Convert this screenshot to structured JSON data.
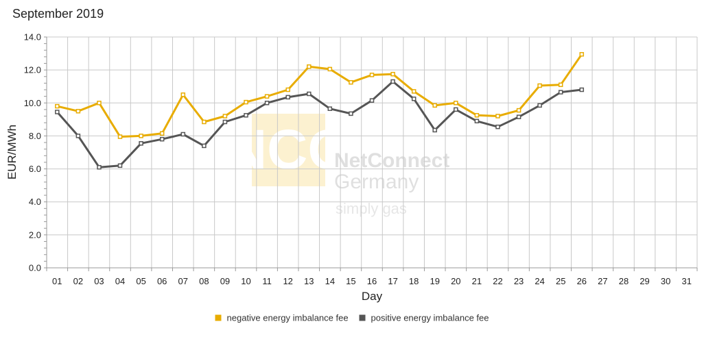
{
  "chart_data": {
    "type": "line",
    "title": "September 2019",
    "xlabel": "Day",
    "ylabel": "EUR/MWh",
    "ylim": [
      0,
      14
    ],
    "y_ticks": [
      "0.0",
      "2.0",
      "4.0",
      "6.0",
      "8.0",
      "10.0",
      "12.0",
      "14.0"
    ],
    "categories": [
      "01",
      "02",
      "03",
      "04",
      "05",
      "06",
      "07",
      "08",
      "09",
      "10",
      "11",
      "12",
      "13",
      "14",
      "15",
      "16",
      "17",
      "18",
      "19",
      "20",
      "21",
      "22",
      "23",
      "24",
      "25",
      "26",
      "27",
      "28",
      "29",
      "30",
      "31"
    ],
    "grid": true,
    "legend_position": "bottom-center",
    "series": [
      {
        "name": "negative energy imbalance fee",
        "color": "#e8ac00",
        "values": [
          9.8,
          9.5,
          10.0,
          7.95,
          8.0,
          8.15,
          10.5,
          8.85,
          9.2,
          10.05,
          10.4,
          10.8,
          12.2,
          12.05,
          11.25,
          11.7,
          11.75,
          10.7,
          9.85,
          10.0,
          9.25,
          9.2,
          9.55,
          11.05,
          11.1,
          12.95,
          null,
          null,
          null,
          null,
          null
        ]
      },
      {
        "name": "positive energy imbalance fee",
        "color": "#555555",
        "values": [
          9.45,
          8.0,
          6.1,
          6.2,
          7.55,
          7.8,
          8.1,
          7.4,
          8.85,
          9.25,
          10.0,
          10.35,
          10.55,
          9.65,
          9.35,
          10.15,
          11.3,
          10.25,
          8.35,
          9.6,
          8.9,
          8.55,
          9.15,
          9.85,
          10.65,
          10.8,
          null,
          null,
          null,
          null,
          null
        ]
      }
    ],
    "watermark": {
      "logo_letters": "NCG",
      "brand_line1": "NetConnect",
      "brand_line2": "Germany",
      "tagline": "simply gas"
    }
  }
}
